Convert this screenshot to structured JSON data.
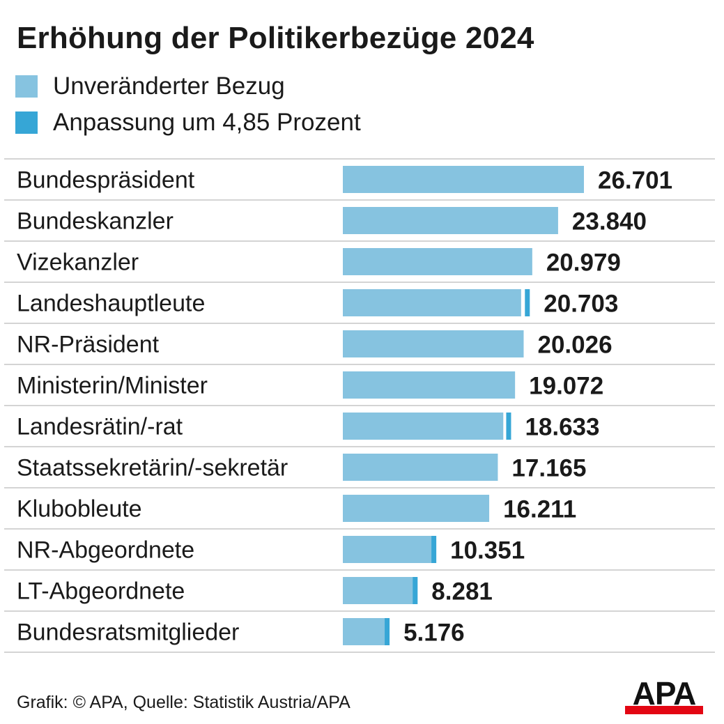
{
  "title": "Erhöhung der Politikerbezüge 2024",
  "legend": [
    {
      "label": "Unveränderter Bezug",
      "color": "#86c3e0"
    },
    {
      "label": "Anpassung um 4,85 Prozent",
      "color": "#36a6d6"
    }
  ],
  "chart_data": {
    "type": "bar",
    "orientation": "horizontal",
    "stacked": true,
    "title": "Erhöhung der Politikerbezüge 2024",
    "categories": [
      "Bundespräsident",
      "Bundeskanzler",
      "Vizekanzler",
      "Landeshauptleute",
      "NR-Präsident",
      "Ministerin/Minister",
      "Landesrätin/-rat",
      "Staatssekretärin/-sekretär",
      "Klubobleute",
      "NR-Abgeordnete",
      "LT-Abgeordnete",
      "Bundesratsmitglieder"
    ],
    "values": [
      26701,
      23840,
      20979,
      20703,
      20026,
      19072,
      18633,
      17165,
      16211,
      10351,
      8281,
      5176
    ],
    "value_labels": [
      "26.701",
      "23.840",
      "20.979",
      "20.703",
      "20.026",
      "19.072",
      "18.633",
      "17.165",
      "16.211",
      "10.351",
      "8.281",
      "5.176"
    ],
    "series": [
      {
        "name": "Unveränderter Bezug",
        "values": [
          26701,
          23840,
          20979,
          19745,
          20026,
          19072,
          17771,
          17165,
          16211,
          9872,
          7898,
          4937
        ]
      },
      {
        "name": "Anpassung um 4,85 Prozent",
        "values": [
          0,
          0,
          0,
          958,
          0,
          0,
          862,
          0,
          0,
          479,
          383,
          239
        ]
      }
    ],
    "xlim": [
      0,
      26701
    ],
    "xlabel": "",
    "ylabel": "",
    "grid": false
  },
  "footer": "Grafik: © APA, Quelle: Statistik Austria/APA",
  "logo": {
    "text": "APA",
    "bar_color": "#e30613"
  }
}
